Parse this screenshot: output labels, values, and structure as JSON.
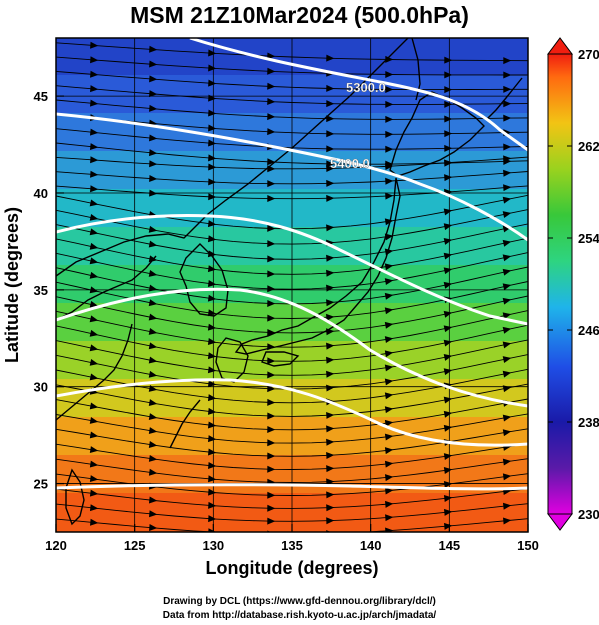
{
  "title": "MSM 21Z10Mar2024 (500.0hPa)",
  "axes": {
    "xlabel": "Longitude (degrees)",
    "ylabel": "Latitude  (degrees)",
    "xlim": [
      120,
      150
    ],
    "ylim": [
      22.5,
      48
    ],
    "xticks": [
      "120",
      "125",
      "130",
      "135",
      "140",
      "145",
      "150"
    ],
    "yticks": [
      "25",
      "30",
      "35",
      "40",
      "45"
    ]
  },
  "colorbar": {
    "min": 230,
    "max": 270,
    "ticks": [
      "230",
      "238",
      "246",
      "254",
      "262",
      "270"
    ]
  },
  "contours": {
    "labels": [
      "5300.0",
      "5400.0"
    ]
  },
  "credits": {
    "line1": "Drawing by DCL (https://www.gfd-dennou.org/library/dcl/)",
    "line2": "Data from http://database.rish.kyoto-u.ac.jp/arch/jmadata/"
  },
  "colors": {
    "warm": "#ff5a00",
    "cold": "#1a2ab0",
    "contour": "#ffffff"
  }
}
